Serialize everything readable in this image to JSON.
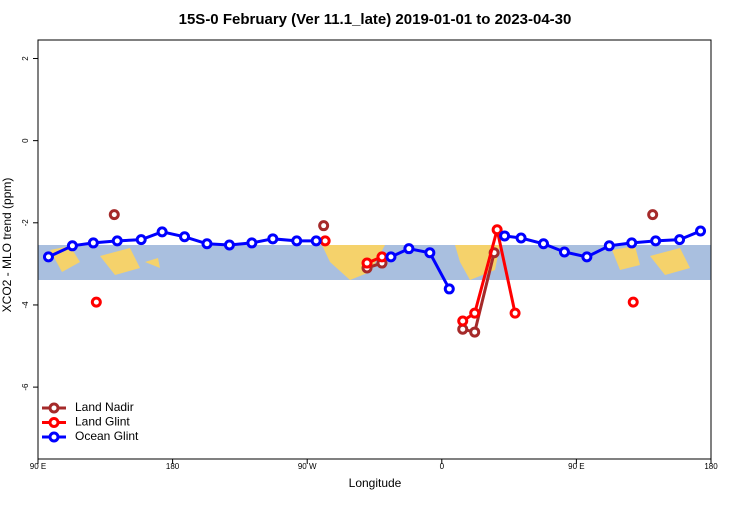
{
  "chart_data": {
    "type": "line",
    "title": "15S-0 February (Ver 11.1_late)   2019-01-01 to 2023-04-30",
    "x_label": "Longitude",
    "y_label": "XCO2 - MLO trend (ppm)",
    "xlim": [
      90,
      540
    ],
    "xticks": [
      {
        "value": 90,
        "label": "90 E"
      },
      180,
      {
        "value": 270,
        "label": "90 W"
      },
      {
        "value": 360,
        "label": "0"
      },
      {
        "value": 450,
        "label": "90 E"
      },
      {
        "value": 540,
        "label": "180"
      }
    ],
    "ylim": [
      -7.75,
      2.45
    ],
    "yticks": [
      2,
      0,
      -2,
      -4,
      -6
    ],
    "legend": "bottom-left",
    "series": [
      {
        "name": "Land Nadir",
        "color": "#a52a2a",
        "x": [
          141,
          null,
          281,
          null,
          310,
          320,
          null,
          374,
          382,
          395,
          null,
          501
        ],
        "values": [
          -1.8,
          null,
          -2.07,
          null,
          -3.1,
          -2.98,
          null,
          -4.59,
          -4.66,
          -2.73,
          null,
          -1.8
        ]
      },
      {
        "name": "Land Glint",
        "color": "#ff0000",
        "x": [
          129,
          null,
          282,
          null,
          310,
          320,
          null,
          374,
          382,
          397,
          409,
          null,
          488
        ],
        "values": [
          -3.93,
          null,
          -2.44,
          null,
          -2.98,
          -2.83,
          null,
          -4.39,
          -4.2,
          -2.17,
          -4.2,
          null,
          -3.93
        ]
      },
      {
        "name": "Ocean Glint",
        "color": "#0000ff",
        "x": [
          97,
          113,
          127,
          143,
          159,
          173,
          188,
          203,
          218,
          233,
          247,
          263,
          276,
          null,
          326,
          338,
          352,
          365,
          null,
          402,
          413,
          428,
          442,
          457,
          472,
          487,
          503,
          519,
          533
        ],
        "values": [
          -2.83,
          -2.56,
          -2.49,
          -2.44,
          -2.41,
          -2.22,
          -2.34,
          -2.51,
          -2.54,
          -2.49,
          -2.39,
          -2.44,
          -2.44,
          null,
          -2.83,
          -2.63,
          -2.73,
          -3.61,
          null,
          -2.32,
          -2.37,
          -2.51,
          -2.71,
          -2.83,
          -2.56,
          -2.49,
          -2.44,
          -2.41,
          -2.2
        ]
      }
    ]
  }
}
